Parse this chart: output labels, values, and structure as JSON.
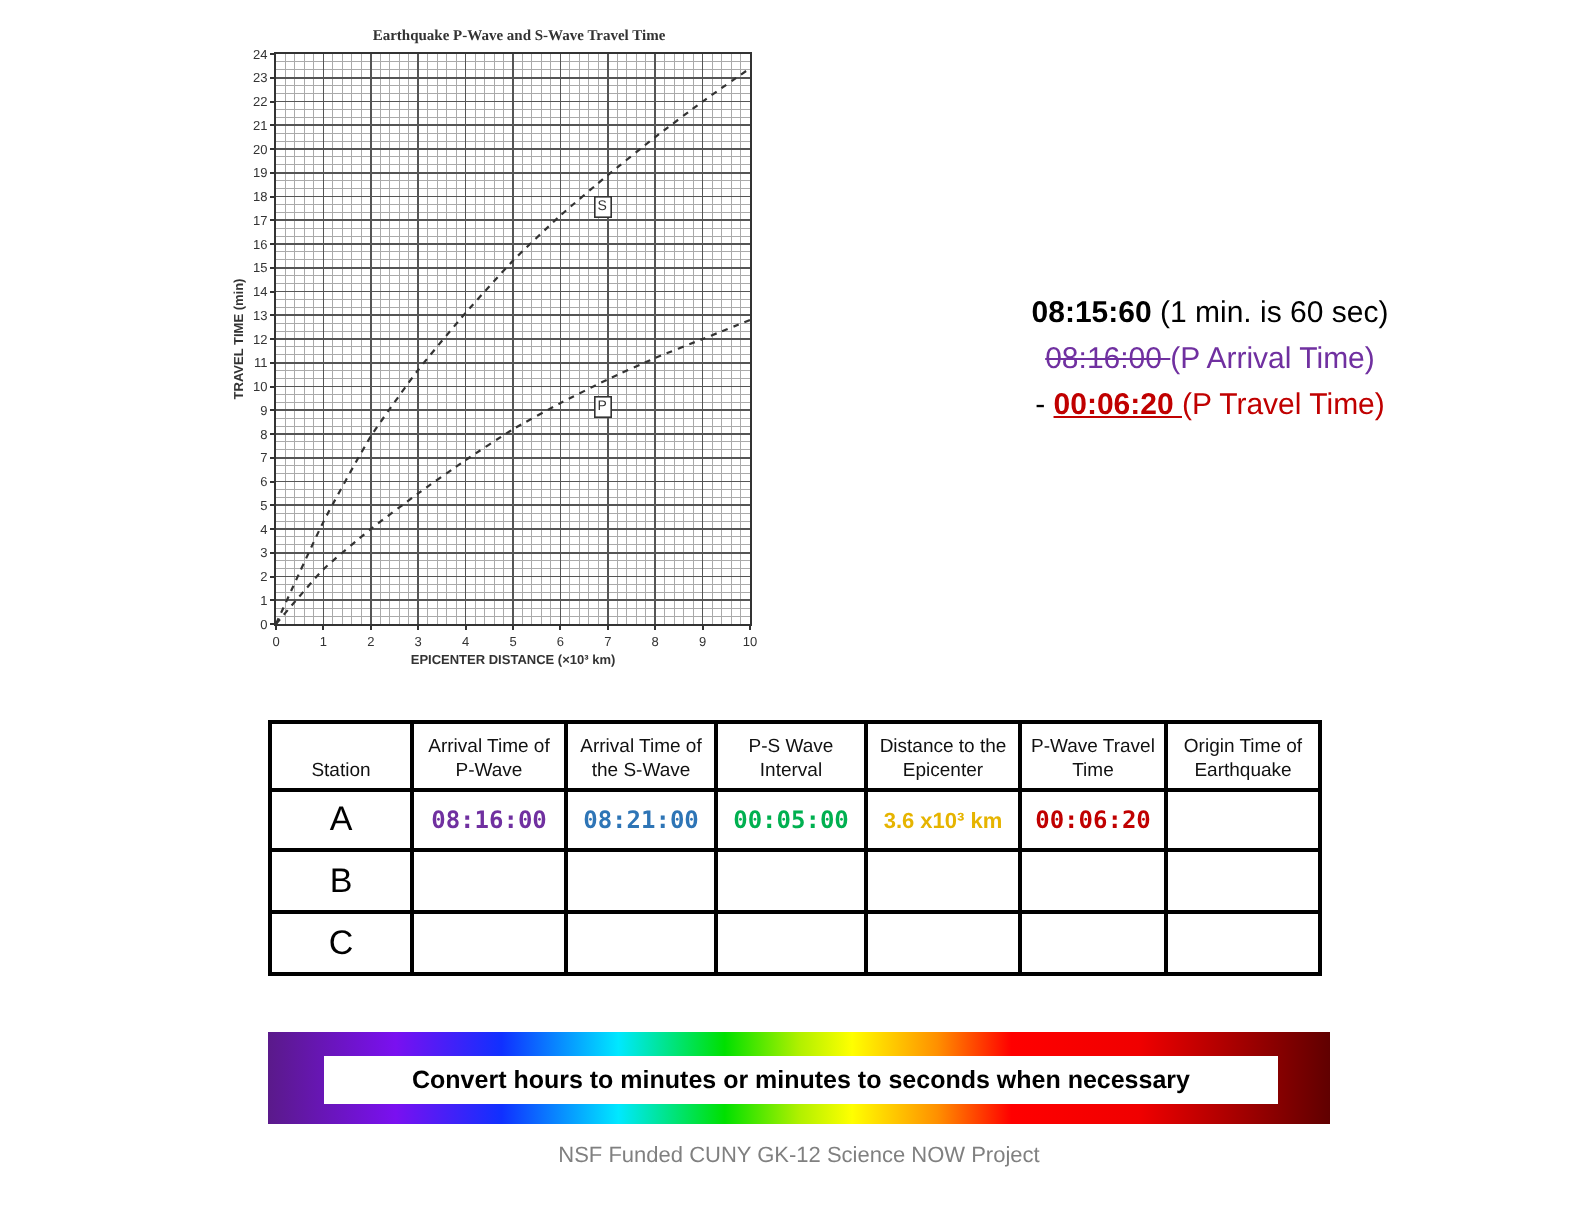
{
  "chart_data": {
    "type": "line",
    "title": "Earthquake P-Wave and S-Wave Travel Time",
    "xlabel": "EPICENTER DISTANCE (×10³ km)",
    "ylabel": "TRAVEL TIME (min)",
    "x": [
      0,
      1,
      2,
      3,
      4,
      5,
      6,
      7,
      8,
      9,
      10
    ],
    "series": [
      {
        "name": "S",
        "color": "#333333",
        "values": [
          0,
          4.3,
          7.9,
          10.7,
          13.1,
          15.3,
          17.2,
          18.9,
          20.5,
          22.0,
          23.4
        ]
      },
      {
        "name": "P",
        "color": "#333333",
        "values": [
          0,
          2.3,
          4.0,
          5.5,
          6.9,
          8.2,
          9.3,
          10.3,
          11.2,
          12.0,
          12.8
        ]
      }
    ],
    "xlim": [
      0,
      10
    ],
    "xticks": [
      0,
      1,
      2,
      3,
      4,
      5,
      6,
      7,
      8,
      9,
      10
    ],
    "ylim": [
      0,
      24
    ],
    "yticks": [
      0,
      1,
      2,
      3,
      4,
      5,
      6,
      7,
      8,
      9,
      10,
      11,
      12,
      13,
      14,
      15,
      16,
      17,
      18,
      19,
      20,
      21,
      22,
      23,
      24
    ],
    "grid": true,
    "marker": "none",
    "line_style": "dotted",
    "annotations": [
      "08:15:60 (1 min. is 60 sec)",
      "08:16:00 (P Arrival Time)",
      "- 00:06:20 (P Travel Time)",
      "Station",
      "Arrival Time of P-Wave",
      "Arrival Time of the S-Wave",
      "P-S Wave Interval",
      "Distance to the Epicenter",
      "P-Wave Travel Time",
      "Origin Time of Earthquake",
      "A",
      "08:16:00",
      "08:21:00",
      "00:05:00",
      "3.6 x10³ km",
      "00:06:20",
      "B",
      "C",
      "Convert hours to minutes or minutes to seconds when necessary",
      "NSF Funded CUNY GK-12 Science NOW Project"
    ]
  }
}
